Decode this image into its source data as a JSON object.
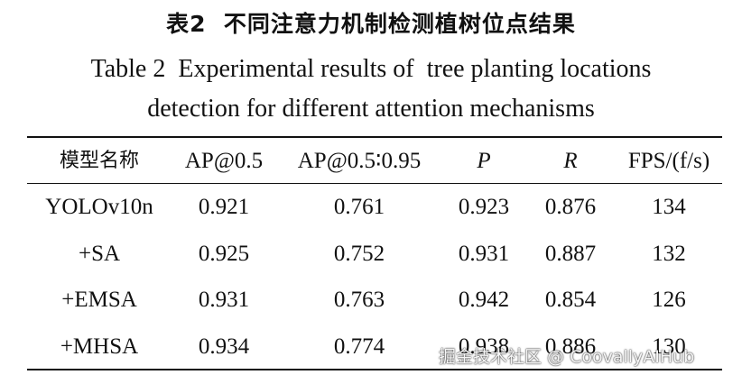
{
  "caption": {
    "title_cn": "表2  不同注意力机制检测植树位点结果",
    "title_en_line1": "Table 2  Experimental results of  tree planting locations",
    "title_en_line2": "detection for different attention mechanisms"
  },
  "table": {
    "headers": [
      "模型名称",
      "AP@0.5",
      "AP@0.5∶0.95",
      "P",
      "R",
      "FPS/(f/s)"
    ],
    "rows": [
      [
        "YOLOv10n",
        "0.921",
        "0.761",
        "0.923",
        "0.876",
        "134"
      ],
      [
        "+SA",
        "0.925",
        "0.752",
        "0.931",
        "0.887",
        "132"
      ],
      [
        "+EMSA",
        "0.931",
        "0.763",
        "0.942",
        "0.854",
        "126"
      ],
      [
        "+MHSA",
        "0.934",
        "0.774",
        "0.938",
        "0.886",
        "130"
      ]
    ]
  },
  "watermark": {
    "text": "掘金技术社区 @ CoovallyAIHub"
  }
}
